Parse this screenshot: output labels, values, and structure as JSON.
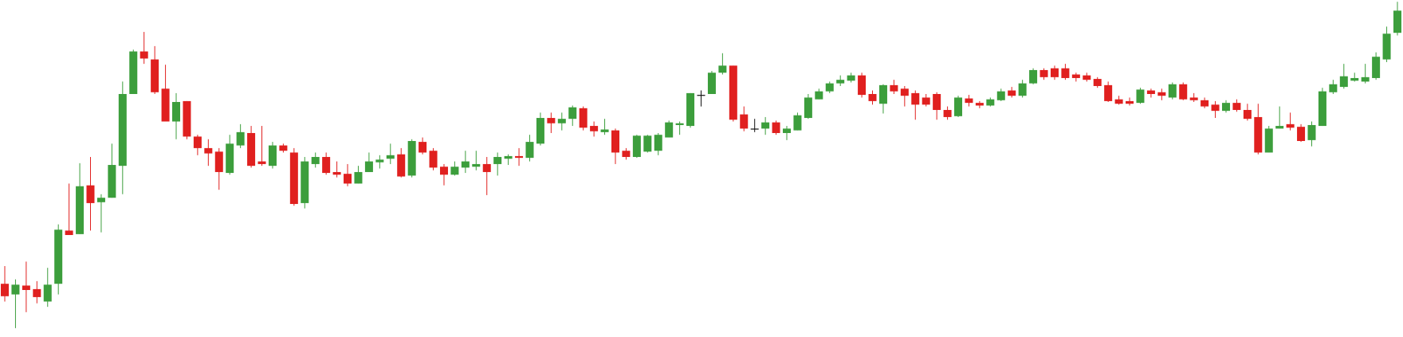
{
  "chart_data": {
    "type": "candlestick",
    "ylim": [
      0,
      380
    ],
    "up_color": "#3c9e3c",
    "down_color": "#e0201f",
    "neutral_color": "#111111",
    "open": [
      60,
      48,
      58,
      54,
      40,
      60,
      120,
      116,
      171,
      152,
      157,
      193,
      274,
      322,
      313,
      280,
      243,
      266,
      226,
      213,
      209,
      185,
      216,
      230,
      198,
      193,
      216,
      208,
      151,
      195,
      203,
      186,
      184,
      173,
      186,
      197,
      201,
      206,
      182,
      220,
      210,
      192,
      183,
      191,
      192,
      195,
      195,
      201,
      204,
      202,
      218,
      247,
      241,
      246,
      258,
      238,
      231,
      233,
      210,
      203,
      209,
      210,
      225,
      239,
      238,
      273,
      274,
      298,
      306,
      251,
      235,
      235,
      242,
      230,
      233,
      247,
      268,
      277,
      286,
      289,
      295,
      274,
      263,
      284,
      280,
      275,
      270,
      274,
      256,
      249,
      269,
      264,
      261,
      267,
      278,
      272,
      286,
      301,
      303,
      303,
      296,
      295,
      291,
      284,
      268,
      266,
      264,
      278,
      276,
      270,
      285,
      270,
      267,
      262,
      255,
      264,
      256,
      248,
      208,
      235,
      240,
      237,
      222,
      238,
      276,
      282,
      289,
      288,
      292,
      313,
      343
    ],
    "high": [
      80,
      65,
      85,
      63,
      78,
      127,
      173,
      196,
      203,
      161,
      218,
      288,
      324,
      344,
      328,
      307,
      275,
      266,
      228,
      223,
      213,
      228,
      240,
      238,
      238,
      220,
      218,
      213,
      203,
      208,
      208,
      198,
      195,
      193,
      208,
      205,
      218,
      213,
      223,
      225,
      213,
      195,
      198,
      210,
      210,
      203,
      208,
      206,
      213,
      228,
      253,
      253,
      253,
      261,
      260,
      243,
      246,
      235,
      213,
      228,
      228,
      230,
      244,
      243,
      275,
      278,
      300,
      320,
      306,
      260,
      246,
      248,
      244,
      238,
      253,
      274,
      280,
      288,
      295,
      298,
      298,
      278,
      285,
      290,
      283,
      278,
      274,
      276,
      260,
      272,
      273,
      266,
      270,
      280,
      282,
      290,
      303,
      303,
      306,
      308,
      298,
      298,
      293,
      288,
      272,
      270,
      281,
      280,
      280,
      287,
      287,
      275,
      270,
      266,
      267,
      268,
      263,
      263,
      238,
      260,
      253,
      240,
      243,
      281,
      290,
      308,
      298,
      308,
      321,
      350,
      378
    ],
    "low": [
      40,
      10,
      28,
      38,
      34,
      48,
      115,
      116,
      120,
      118,
      157,
      161,
      274,
      308,
      274,
      243,
      223,
      223,
      205,
      193,
      166,
      183,
      213,
      191,
      193,
      190,
      208,
      148,
      145,
      191,
      183,
      180,
      170,
      173,
      186,
      190,
      195,
      180,
      180,
      206,
      188,
      171,
      182,
      185,
      188,
      160,
      182,
      194,
      193,
      198,
      216,
      230,
      233,
      238,
      233,
      226,
      228,
      195,
      200,
      202,
      208,
      205,
      225,
      228,
      236,
      260,
      274,
      296,
      243,
      232,
      231,
      228,
      228,
      222,
      233,
      246,
      268,
      275,
      283,
      287,
      270,
      262,
      252,
      274,
      260,
      245,
      260,
      245,
      245,
      248,
      260,
      258,
      260,
      266,
      270,
      270,
      285,
      290,
      290,
      290,
      288,
      288,
      281,
      265,
      262,
      261,
      263,
      270,
      267,
      268,
      267,
      265,
      258,
      247,
      253,
      254,
      244,
      206,
      208,
      235,
      233,
      220,
      215,
      238,
      274,
      280,
      288,
      286,
      290,
      310,
      340
    ],
    "close": [
      46,
      59,
      53,
      45,
      59,
      121,
      115,
      170,
      151,
      157,
      194,
      274,
      322,
      314,
      276,
      243,
      265,
      226,
      213,
      207,
      186,
      218,
      231,
      193,
      195,
      216,
      210,
      150,
      198,
      203,
      185,
      183,
      173,
      186,
      198,
      200,
      205,
      181,
      221,
      208,
      191,
      183,
      192,
      198,
      195,
      186,
      203,
      204,
      202,
      220,
      247,
      241,
      246,
      259,
      236,
      232,
      234,
      208,
      203,
      227,
      227,
      228,
      242,
      241,
      275,
      273,
      298,
      306,
      245,
      235,
      235,
      242,
      230,
      235,
      250,
      270,
      277,
      286,
      290,
      295,
      273,
      266,
      284,
      277,
      272,
      262,
      262,
      256,
      248,
      270,
      264,
      261,
      268,
      277,
      272,
      286,
      301,
      293,
      293,
      292,
      292,
      290,
      283,
      266,
      263,
      263,
      279,
      274,
      272,
      285,
      268,
      267,
      260,
      255,
      264,
      256,
      246,
      208,
      235,
      238,
      236,
      221,
      239,
      277,
      285,
      294,
      292,
      293,
      316,
      342,
      368
    ]
  }
}
